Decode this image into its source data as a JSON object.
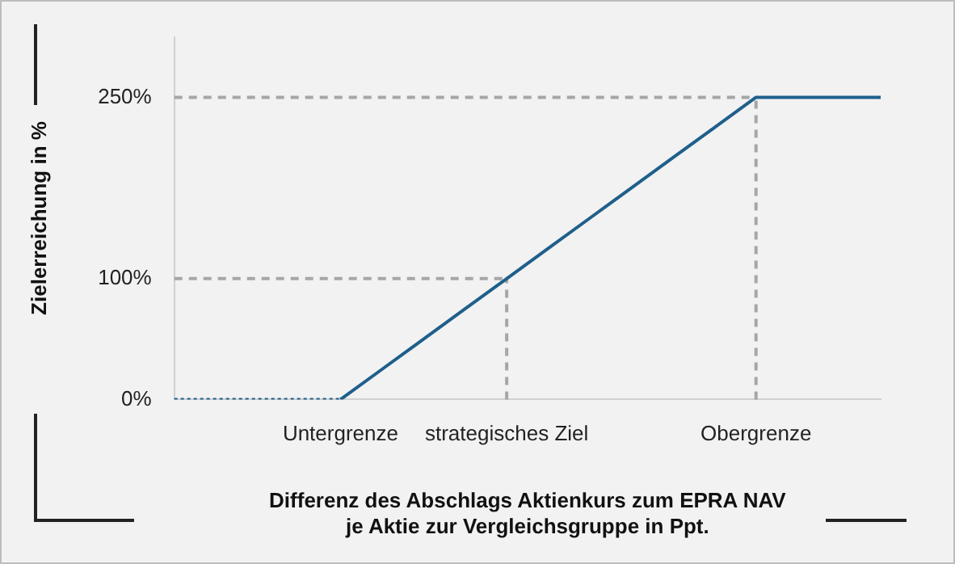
{
  "chart_data": {
    "type": "line",
    "ylabel": "Zielerreichung in %",
    "xlabel": "Differenz des Abschlags Aktienkurs zum EPRA NAV\nje Aktie zur Vergleichsgruppe in Ppt.",
    "categories": [
      null,
      null,
      null,
      null,
      "Untergrenze",
      null,
      null,
      null,
      "strategisches Ziel",
      null,
      null,
      null,
      null,
      null,
      "Obergrenze",
      null,
      null,
      null
    ],
    "series": [
      {
        "color": "#1f5f8b",
        "line_style": "dotted",
        "values": [
          0,
          0,
          0,
          0,
          0,
          null,
          null,
          null,
          null,
          null,
          null,
          null,
          null,
          null,
          null,
          null,
          null,
          null
        ]
      },
      {
        "color": "#1f5f8b",
        "line_style": "solid",
        "values": [
          null,
          null,
          null,
          null,
          0,
          25,
          50,
          75,
          100,
          125,
          150,
          175,
          200,
          225,
          250,
          250,
          250,
          250
        ]
      }
    ],
    "ylim": [
      0,
      300
    ],
    "yticks": [
      {
        "value": 0,
        "label": "0%"
      },
      {
        "value": 100,
        "label": "100%"
      },
      {
        "value": 250,
        "label": "250%"
      }
    ],
    "ref_lines": [
      {
        "axis": "y",
        "value": 100,
        "color": "#a6a6a6",
        "line_style": "dashed"
      },
      {
        "axis": "y",
        "value": 250,
        "color": "#a6a6a6",
        "line_style": "dashed"
      },
      {
        "axis": "x",
        "value": "strategisches Ziel",
        "color": "#a6a6a6",
        "line_style": "dashed"
      },
      {
        "axis": "x",
        "value": "Obergrenze",
        "color": "#a6a6a6",
        "line_style": "dashed"
      }
    ],
    "grid": false,
    "legend": false,
    "marker": "none"
  }
}
